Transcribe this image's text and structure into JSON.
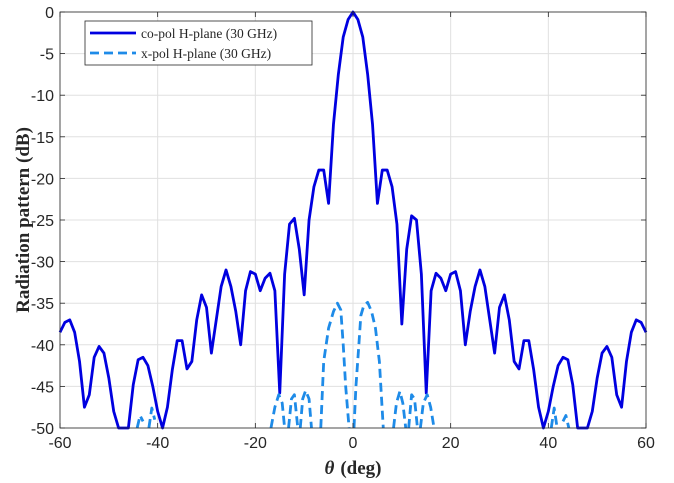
{
  "chart_data": {
    "type": "line",
    "title": "",
    "xlabel_symbol": "θ",
    "xlabel_unit": "(deg)",
    "ylabel": "Radiation pattern (dB)",
    "xlim": [
      -60,
      60
    ],
    "ylim": [
      -50,
      0
    ],
    "xticks": [
      "-60",
      "-40",
      "-20",
      "0",
      "20",
      "40",
      "60"
    ],
    "yticks": [
      "0",
      "-5",
      "-10",
      "-15",
      "-20",
      "-25",
      "-30",
      "-35",
      "-40",
      "-45",
      "-50"
    ],
    "grid": true,
    "legend_position": "top-left",
    "series": [
      {
        "name": "co-pol H-plane (30 GHz)",
        "color": "#0000e0",
        "style": "solid",
        "points": [
          [
            -60,
            -38.5
          ],
          [
            -59,
            -37.3
          ],
          [
            -58,
            -37.0
          ],
          [
            -57,
            -38.5
          ],
          [
            -56,
            -42.0
          ],
          [
            -55,
            -47.5
          ],
          [
            -54,
            -46.0
          ],
          [
            -53,
            -41.5
          ],
          [
            -52,
            -40.2
          ],
          [
            -51,
            -41.0
          ],
          [
            -50,
            -44.0
          ],
          [
            -49,
            -48.0
          ],
          [
            -48,
            -50.0
          ],
          [
            -46,
            -50.0
          ],
          [
            -45,
            -44.8
          ],
          [
            -44,
            -41.8
          ],
          [
            -43,
            -41.5
          ],
          [
            -42,
            -42.5
          ],
          [
            -41,
            -45.0
          ],
          [
            -40,
            -48.0
          ],
          [
            -39,
            -50.0
          ],
          [
            -38,
            -47.5
          ],
          [
            -37,
            -43.0
          ],
          [
            -36,
            -39.5
          ],
          [
            -35,
            -39.5
          ],
          [
            -34,
            -42.9
          ],
          [
            -33,
            -42.0
          ],
          [
            -32,
            -37.0
          ],
          [
            -31,
            -34.0
          ],
          [
            -30,
            -35.5
          ],
          [
            -29,
            -41.0
          ],
          [
            -28,
            -37.0
          ],
          [
            -27,
            -33.0
          ],
          [
            -26,
            -31.0
          ],
          [
            -25,
            -33.0
          ],
          [
            -24,
            -36.0
          ],
          [
            -23,
            -40.0
          ],
          [
            -22,
            -33.5
          ],
          [
            -21,
            -31.2
          ],
          [
            -20,
            -31.5
          ],
          [
            -19,
            -33.5
          ],
          [
            -18,
            -32.0
          ],
          [
            -17,
            -31.4
          ],
          [
            -16,
            -33.5
          ],
          [
            -15,
            -45.8
          ],
          [
            -14,
            -31.5
          ],
          [
            -13,
            -25.5
          ],
          [
            -12,
            -24.8
          ],
          [
            -11,
            -28.5
          ],
          [
            -10,
            -34.0
          ],
          [
            -9,
            -25.0
          ],
          [
            -8,
            -21.0
          ],
          [
            -7,
            -19.0
          ],
          [
            -6,
            -19.0
          ],
          [
            -5,
            -23.0
          ],
          [
            -4,
            -13.5
          ],
          [
            -3,
            -7.5
          ],
          [
            -2,
            -3.0
          ],
          [
            -1,
            -0.9
          ],
          [
            0,
            0
          ],
          [
            1,
            -0.9
          ],
          [
            2,
            -3.0
          ],
          [
            3,
            -7.5
          ],
          [
            4,
            -13.5
          ],
          [
            5,
            -23.0
          ],
          [
            6,
            -19.0
          ],
          [
            7,
            -19.0
          ],
          [
            8,
            -21.0
          ],
          [
            9,
            -25.5
          ],
          [
            10,
            -37.5
          ],
          [
            11,
            -28.5
          ],
          [
            12,
            -24.5
          ],
          [
            13,
            -25.0
          ],
          [
            14,
            -31.5
          ],
          [
            15,
            -45.8
          ],
          [
            16,
            -33.5
          ],
          [
            17,
            -31.4
          ],
          [
            18,
            -32.0
          ],
          [
            19,
            -33.5
          ],
          [
            20,
            -31.5
          ],
          [
            21,
            -31.2
          ],
          [
            22,
            -33.5
          ],
          [
            23,
            -40.0
          ],
          [
            24,
            -36.0
          ],
          [
            25,
            -33.0
          ],
          [
            26,
            -31.0
          ],
          [
            27,
            -33.0
          ],
          [
            28,
            -37.0
          ],
          [
            29,
            -41.0
          ],
          [
            30,
            -35.5
          ],
          [
            31,
            -34.0
          ],
          [
            32,
            -37.0
          ],
          [
            33,
            -42.0
          ],
          [
            34,
            -42.9
          ],
          [
            35,
            -39.5
          ],
          [
            36,
            -39.5
          ],
          [
            37,
            -43.0
          ],
          [
            38,
            -47.5
          ],
          [
            39,
            -50.0
          ],
          [
            40,
            -48.0
          ],
          [
            41,
            -45.0
          ],
          [
            42,
            -42.5
          ],
          [
            43,
            -41.5
          ],
          [
            44,
            -41.8
          ],
          [
            45,
            -44.8
          ],
          [
            46,
            -50.0
          ],
          [
            48,
            -50.0
          ],
          [
            49,
            -48.0
          ],
          [
            50,
            -44.0
          ],
          [
            51,
            -41.0
          ],
          [
            52,
            -40.2
          ],
          [
            53,
            -41.5
          ],
          [
            54,
            -46.0
          ],
          [
            55,
            -47.5
          ],
          [
            56,
            -42.0
          ],
          [
            57,
            -38.5
          ],
          [
            58,
            -37.0
          ],
          [
            59,
            -37.3
          ],
          [
            60,
            -38.5
          ]
        ]
      },
      {
        "name": "x-pol H-plane (30 GHz)",
        "color": "#1e8be8",
        "style": "dashed",
        "segments": [
          [
            [
              -44.2,
              -50.0
            ],
            [
              -43.6,
              -48.5
            ],
            [
              -43.0,
              -49.2
            ]
          ],
          [
            [
              -41.8,
              -50.0
            ],
            [
              -41.2,
              -47.6
            ],
            [
              -40.6,
              -49.0
            ]
          ],
          [
            [
              -16.8,
              -50.0
            ],
            [
              -16.0,
              -47.5
            ],
            [
              -15.2,
              -46.0
            ],
            [
              -14.5,
              -47.0
            ],
            [
              -14.0,
              -50.0
            ]
          ],
          [
            [
              -13.2,
              -50.0
            ],
            [
              -12.6,
              -46.5
            ],
            [
              -12.0,
              -46.0
            ],
            [
              -11.3,
              -50.0
            ]
          ],
          [
            [
              -10.8,
              -50.0
            ],
            [
              -10.3,
              -46.5
            ],
            [
              -9.7,
              -45.5
            ],
            [
              -9.0,
              -46.5
            ],
            [
              -8.5,
              -50.0
            ]
          ],
          [
            [
              -6.6,
              -50.0
            ],
            [
              -6.0,
              -42.0
            ],
            [
              -5.0,
              -38.0
            ],
            [
              -4.0,
              -36.0
            ],
            [
              -3.2,
              -35.0
            ],
            [
              -2.5,
              -35.8
            ],
            [
              -2.0,
              -40.0
            ],
            [
              -1.5,
              -45.0
            ],
            [
              -0.8,
              -50.0
            ]
          ],
          [
            [
              0.2,
              -50.0
            ],
            [
              0.6,
              -45.0
            ],
            [
              1.2,
              -40.0
            ],
            [
              1.6,
              -36.5
            ],
            [
              2.2,
              -35.3
            ],
            [
              3.0,
              -34.9
            ],
            [
              3.8,
              -36.0
            ],
            [
              4.6,
              -38.0
            ],
            [
              5.4,
              -42.0
            ],
            [
              6.2,
              -50.0
            ]
          ],
          [
            [
              8.3,
              -50.0
            ],
            [
              8.9,
              -47.0
            ],
            [
              9.6,
              -45.6
            ],
            [
              10.2,
              -47.0
            ],
            [
              10.8,
              -50.0
            ]
          ],
          [
            [
              11.4,
              -50.0
            ],
            [
              12.0,
              -46.0
            ],
            [
              12.6,
              -46.5
            ],
            [
              13.2,
              -50.0
            ]
          ],
          [
            [
              13.8,
              -50.0
            ],
            [
              14.4,
              -47.0
            ],
            [
              15.2,
              -46.0
            ],
            [
              15.9,
              -47.5
            ],
            [
              16.6,
              -50.0
            ]
          ],
          [
            [
              40.6,
              -50.0
            ],
            [
              41.2,
              -47.6
            ],
            [
              41.8,
              -50.0
            ]
          ],
          [
            [
              43.0,
              -49.2
            ],
            [
              43.6,
              -48.5
            ],
            [
              44.2,
              -50.0
            ]
          ]
        ]
      }
    ]
  }
}
